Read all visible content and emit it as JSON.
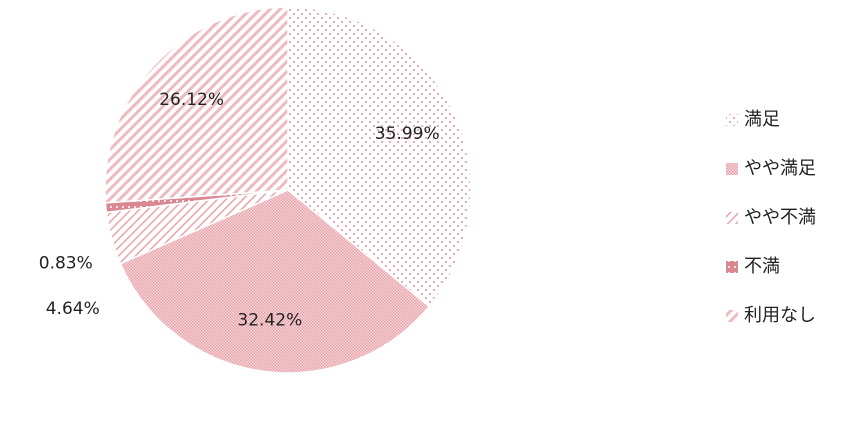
{
  "chart_data": {
    "type": "pie",
    "categories": [
      "満足",
      "やや満足",
      "やや不満",
      "不満",
      "利用なし"
    ],
    "values": [
      35.99,
      32.42,
      4.64,
      0.83,
      26.12
    ],
    "value_labels": [
      "35.99%",
      "32.42%",
      "4.64%",
      "0.83%",
      "26.12%"
    ],
    "color": "#e8a3ab",
    "legend": "right"
  }
}
